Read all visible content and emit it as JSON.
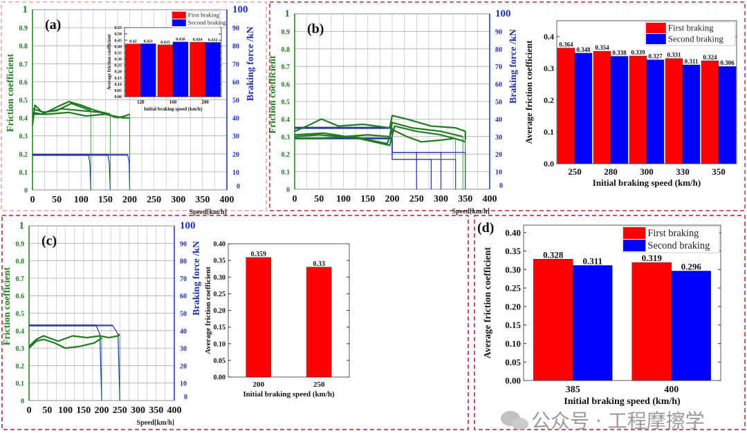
{
  "watermark": "公众号 · 工程摩擦学",
  "chart_data": [
    {
      "panel": "(a)",
      "type": "line",
      "xlabel": "Speed[km/h]",
      "ylabel": "Friction coefficient",
      "y2label": "Braking force /kN",
      "xlim": [
        0,
        400
      ],
      "ylim": [
        0,
        1
      ],
      "y2lim": [
        0,
        100
      ],
      "xticks": [
        "0",
        "50",
        "100",
        "150",
        "200",
        "250",
        "300",
        "350",
        "400"
      ],
      "yticks": [
        "0",
        "0.1",
        "0.2",
        "0.3",
        "0.4",
        "0.5",
        "0.6",
        "0.7",
        "0.8",
        "0.9",
        "1"
      ],
      "y2ticks": [
        "0",
        "10",
        "20",
        "30",
        "40",
        "50",
        "60",
        "70",
        "80",
        "90",
        "100"
      ],
      "grid": true,
      "colors": {
        "friction": "#1e7b1e",
        "force": "#1f2fa8"
      },
      "friction_series": [
        [
          [
            0,
            0.36
          ],
          [
            5,
            0.47
          ],
          [
            20,
            0.43
          ],
          [
            50,
            0.44
          ],
          [
            80,
            0.48
          ],
          [
            100,
            0.46
          ],
          [
            120,
            0.44
          ]
        ],
        [
          [
            0,
            0.43
          ],
          [
            20,
            0.42
          ],
          [
            50,
            0.46
          ],
          [
            75,
            0.49
          ],
          [
            100,
            0.47
          ],
          [
            130,
            0.44
          ],
          [
            160,
            0.42
          ]
        ],
        [
          [
            0,
            0.45
          ],
          [
            25,
            0.43
          ],
          [
            60,
            0.45
          ],
          [
            100,
            0.44
          ],
          [
            140,
            0.43
          ],
          [
            175,
            0.4
          ],
          [
            190,
            0.41
          ],
          [
            200,
            0.42
          ]
        ],
        [
          [
            0,
            0.42
          ],
          [
            30,
            0.42
          ],
          [
            75,
            0.43
          ],
          [
            110,
            0.41
          ],
          [
            150,
            0.42
          ],
          [
            185,
            0.4
          ],
          [
            200,
            0.4
          ]
        ]
      ],
      "force_series": [
        [
          [
            0,
            19.5
          ],
          [
            115,
            19.5
          ],
          [
            118,
            15
          ],
          [
            120,
            0
          ]
        ],
        [
          [
            0,
            19.5
          ],
          [
            155,
            19.5
          ],
          [
            158,
            15
          ],
          [
            160,
            0
          ]
        ],
        [
          [
            0,
            19.5
          ],
          [
            196,
            19.5
          ],
          [
            199,
            15
          ],
          [
            200,
            0
          ]
        ]
      ],
      "inset": {
        "type": "bar",
        "xlabel": "Initial braking speed (km/h)",
        "ylabel": "Average friction coefficient",
        "ylim": [
          0,
          0.55
        ],
        "yticks": [
          "0.00",
          "0.05",
          "0.10",
          "0.15",
          "0.20",
          "0.25",
          "0.30",
          "0.35",
          "0.40",
          "0.45",
          "0.50",
          "0.55"
        ],
        "categories": [
          "120",
          "160",
          "200"
        ],
        "legend_position": "top-right",
        "series": [
          {
            "name": "First braking",
            "color": "#ff0000",
            "values": [
              0.42,
              0.413,
              0.434
            ],
            "labels": [
              "0.42",
              "0.413",
              "0.434"
            ]
          },
          {
            "name": "Second braking",
            "color": "#0000ff",
            "values": [
              0.421,
              0.436,
              0.432
            ],
            "labels": [
              "0.421",
              "0.436",
              "0.432"
            ]
          }
        ]
      }
    },
    {
      "panel": "(b)",
      "type": "line",
      "xlabel": "Speed[km/h]",
      "ylabel": "Friction coefficient",
      "y2label": "Braking force /kN",
      "xlim": [
        0,
        400
      ],
      "ylim": [
        0,
        1
      ],
      "y2lim": [
        0,
        100
      ],
      "xticks": [
        "0",
        "50",
        "100",
        "150",
        "200",
        "250",
        "300",
        "350",
        "400"
      ],
      "yticks": [
        "0",
        "0.1",
        "0.2",
        "0.3",
        "0.4",
        "0.5",
        "0.6",
        "0.7",
        "0.8",
        "0.9",
        "1"
      ],
      "y2ticks": [
        "0",
        "10",
        "20",
        "30",
        "40",
        "50",
        "60",
        "70",
        "80",
        "90",
        "100"
      ],
      "grid": true,
      "colors": {
        "friction": "#1e7b1e",
        "force": "#1f2fa8"
      },
      "friction_series": [
        [
          [
            0,
            0.33
          ],
          [
            25,
            0.36
          ],
          [
            55,
            0.4
          ],
          [
            90,
            0.36
          ],
          [
            140,
            0.37
          ],
          [
            195,
            0.35
          ],
          [
            200,
            0.42
          ],
          [
            230,
            0.4
          ],
          [
            280,
            0.36
          ],
          [
            330,
            0.35
          ],
          [
            350,
            0.33
          ],
          [
            350,
            0.28
          ]
        ],
        [
          [
            0,
            0.3
          ],
          [
            50,
            0.31
          ],
          [
            100,
            0.3
          ],
          [
            150,
            0.31
          ],
          [
            195,
            0.3
          ],
          [
            200,
            0.38
          ],
          [
            240,
            0.35
          ],
          [
            300,
            0.33
          ],
          [
            345,
            0.3
          ]
        ],
        [
          [
            0,
            0.29
          ],
          [
            50,
            0.29
          ],
          [
            120,
            0.3
          ],
          [
            190,
            0.26
          ],
          [
            200,
            0.34
          ],
          [
            230,
            0.3
          ],
          [
            260,
            0.27
          ],
          [
            300,
            0.28
          ],
          [
            330,
            0.29
          ]
        ],
        [
          [
            0,
            0.31
          ],
          [
            60,
            0.32
          ],
          [
            130,
            0.29
          ],
          [
            195,
            0.25
          ],
          [
            205,
            0.36
          ],
          [
            250,
            0.33
          ],
          [
            300,
            0.31
          ],
          [
            340,
            0.28
          ],
          [
            350,
            0.27
          ]
        ]
      ],
      "force_series": [
        [
          [
            0,
            35
          ],
          [
            200,
            35
          ],
          [
            200,
            21
          ],
          [
            250,
            21
          ],
          [
            250,
            0
          ]
        ],
        [
          [
            0,
            29
          ],
          [
            200,
            29
          ],
          [
            200,
            17
          ],
          [
            280,
            17
          ],
          [
            280,
            0
          ]
        ],
        [
          [
            0,
            35
          ],
          [
            200,
            35
          ],
          [
            200,
            21
          ],
          [
            300,
            21
          ],
          [
            300,
            0
          ]
        ],
        [
          [
            0,
            29
          ],
          [
            200,
            29
          ],
          [
            200,
            17
          ],
          [
            330,
            17
          ],
          [
            330,
            0
          ]
        ],
        [
          [
            0,
            35
          ],
          [
            200,
            35
          ],
          [
            200,
            21
          ],
          [
            350,
            21
          ],
          [
            350,
            0
          ]
        ]
      ],
      "bar": {
        "type": "bar",
        "xlabel": "Initial braking speed (km/h)",
        "ylabel": "Average friction coefficient",
        "ylim": [
          0,
          0.45
        ],
        "yticks": [
          "0.0",
          "0.1",
          "0.2",
          "0.3",
          "0.4"
        ],
        "ytick_values": [
          0,
          0.1,
          0.2,
          0.3,
          0.4
        ],
        "categories": [
          "250",
          "280",
          "300",
          "330",
          "350"
        ],
        "legend_position": "top-right",
        "series": [
          {
            "name": "First braking",
            "color": "#ff0000",
            "values": [
              0.364,
              0.354,
              0.339,
              0.331,
              0.324
            ],
            "labels": [
              "0.364",
              "0.354",
              "0.339",
              "0.331",
              "0.324"
            ]
          },
          {
            "name": "Second braking",
            "color": "#0000ff",
            "values": [
              0.348,
              0.338,
              0.327,
              0.311,
              0.306
            ],
            "labels": [
              "0.348",
              "0.338",
              "0.327",
              "0.311",
              "0.306"
            ]
          }
        ]
      }
    },
    {
      "panel": "(c)",
      "type": "line",
      "xlabel": "Speed[km/h]",
      "ylabel": "Friction coefficient",
      "y2label": "Braking force /kN",
      "xlim": [
        0,
        400
      ],
      "ylim": [
        0,
        1
      ],
      "y2lim": [
        0,
        100
      ],
      "xticks": [
        "0",
        "50",
        "100",
        "150",
        "200",
        "250",
        "300",
        "350",
        "400"
      ],
      "yticks": [
        "0",
        "0.1",
        "0.2",
        "0.3",
        "0.4",
        "0.5",
        "0.6",
        "0.7",
        "0.8",
        "0.9",
        "1"
      ],
      "y2ticks": [
        "0",
        "10",
        "20",
        "30",
        "40",
        "50",
        "60",
        "70",
        "80",
        "90",
        "100"
      ],
      "grid": true,
      "colors": {
        "friction": "#1e7b1e",
        "force": "#1f2fa8"
      },
      "friction_series": [
        [
          [
            0,
            0.3
          ],
          [
            20,
            0.34
          ],
          [
            40,
            0.35
          ],
          [
            70,
            0.33
          ],
          [
            100,
            0.3
          ],
          [
            140,
            0.31
          ],
          [
            180,
            0.33
          ],
          [
            195,
            0.35
          ],
          [
            200,
            0.36
          ]
        ],
        [
          [
            0,
            0.31
          ],
          [
            20,
            0.35
          ],
          [
            40,
            0.37
          ],
          [
            80,
            0.34
          ],
          [
            120,
            0.37
          ],
          [
            160,
            0.36
          ],
          [
            195,
            0.37
          ],
          [
            220,
            0.36
          ],
          [
            245,
            0.37
          ],
          [
            250,
            0.38
          ]
        ]
      ],
      "force_series": [
        [
          [
            0,
            43
          ],
          [
            185,
            43
          ],
          [
            195,
            38
          ],
          [
            200,
            0
          ]
        ],
        [
          [
            0,
            43
          ],
          [
            230,
            43
          ],
          [
            245,
            38
          ],
          [
            250,
            0
          ]
        ]
      ],
      "bar": {
        "type": "bar",
        "xlabel": "Initial braking speed (km/h)",
        "ylabel": "Average friction coefficient",
        "ylim": [
          0,
          0.4
        ],
        "yticks": [
          "0.00",
          "0.05",
          "0.10",
          "0.15",
          "0.20",
          "0.25",
          "0.30",
          "0.35",
          "0.40"
        ],
        "ytick_values": [
          0,
          0.05,
          0.1,
          0.15,
          0.2,
          0.25,
          0.3,
          0.35,
          0.4
        ],
        "categories": [
          "200",
          "250"
        ],
        "series": [
          {
            "color": "#ff0000",
            "values": [
              0.359,
              0.33
            ],
            "labels": [
              "0.359",
              "0.33"
            ]
          }
        ]
      }
    },
    {
      "panel": "(d)",
      "type": "bar",
      "xlabel": "Initial braking speed (km/h)",
      "ylabel": "Average friction coefficient",
      "ylim": [
        0,
        0.42
      ],
      "yticks": [
        "0.00",
        "0.05",
        "0.10",
        "0.15",
        "0.20",
        "0.25",
        "0.30",
        "0.35",
        "0.40"
      ],
      "ytick_values": [
        0,
        0.05,
        0.1,
        0.15,
        0.2,
        0.25,
        0.3,
        0.35,
        0.4
      ],
      "categories": [
        "385",
        "400"
      ],
      "legend_position": "top-right",
      "series": [
        {
          "name": "First braking",
          "color": "#ff0000",
          "values": [
            0.328,
            0.319
          ],
          "labels": [
            "0.328",
            "0.319"
          ]
        },
        {
          "name": "Second braking",
          "color": "#0000ff",
          "values": [
            0.311,
            0.296
          ],
          "labels": [
            "0.311",
            "0.296"
          ]
        }
      ]
    }
  ]
}
